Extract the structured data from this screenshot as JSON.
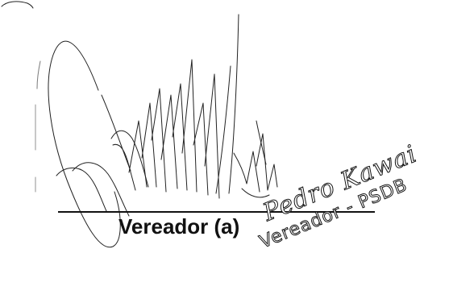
{
  "signature": {
    "role_label": "Vereador (a)",
    "stamp_name": "Pedro Kawai",
    "stamp_title": "Vereador - PSDB"
  },
  "colors": {
    "ink": "#111111",
    "paper": "#ffffff"
  }
}
